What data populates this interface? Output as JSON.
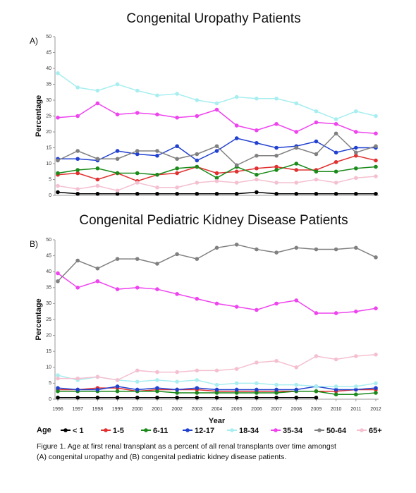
{
  "chart_data": [
    {
      "type": "line",
      "title": "Congenital Uropathy Patients",
      "panel_label": "A)",
      "ylabel": "Percentage",
      "x": [
        1996,
        1997,
        1998,
        1999,
        2000,
        2001,
        2002,
        2003,
        2004,
        2005,
        2006,
        2007,
        2008,
        2009,
        2010,
        2011,
        2012
      ],
      "xlim": [
        1996,
        2012
      ],
      "ylim": [
        0,
        50
      ],
      "yticks": [
        0,
        5,
        10,
        15,
        20,
        25,
        30,
        35,
        40,
        45,
        50
      ],
      "series": [
        {
          "name": "< 1",
          "color": "#000000",
          "values": [
            1,
            0.5,
            0.5,
            0.5,
            0.5,
            0.5,
            0.5,
            0.5,
            0.5,
            0.5,
            1,
            0.5,
            0.5,
            0.5,
            0.5,
            0.5,
            0.5
          ]
        },
        {
          "name": "1-5",
          "color": "#e03030",
          "values": [
            6.5,
            7,
            5,
            7,
            4.5,
            6.5,
            7,
            9,
            7,
            7.5,
            8.5,
            9,
            8,
            8,
            10.5,
            12.5,
            11
          ]
        },
        {
          "name": "6-11",
          "color": "#1a8a1a",
          "values": [
            7,
            8,
            8.5,
            7,
            7,
            6.5,
            8.5,
            9,
            5.5,
            9,
            6.5,
            8,
            10,
            7.5,
            7.5,
            8.5,
            9
          ]
        },
        {
          "name": "12-17",
          "color": "#2040d0",
          "values": [
            11.5,
            11.5,
            11,
            14,
            13,
            12.5,
            15.5,
            11,
            14,
            18,
            16.5,
            15,
            15.5,
            17,
            13.5,
            15,
            15
          ]
        },
        {
          "name": "18-34",
          "color": "#a8eef0",
          "values": [
            38.5,
            34,
            33,
            35,
            33,
            31.5,
            32,
            30,
            29,
            31,
            30.5,
            30.5,
            29,
            26.5,
            24,
            26.5,
            25
          ]
        },
        {
          "name": "35-34",
          "color": "#ee44ee",
          "values": [
            24.5,
            25,
            29,
            25.5,
            26,
            25.5,
            24.5,
            25,
            27,
            22,
            20.5,
            22.5,
            20,
            23,
            22.5,
            20,
            19.5
          ]
        },
        {
          "name": "50-64",
          "color": "#808080",
          "values": [
            11,
            14,
            11.5,
            11.5,
            14,
            14,
            11.5,
            13,
            15.5,
            9.5,
            12.5,
            12.5,
            15,
            13,
            19.5,
            13.5,
            15.5
          ]
        },
        {
          "name": "65+",
          "color": "#f4c0d0",
          "values": [
            3,
            2,
            3,
            1.5,
            4,
            2.5,
            2.5,
            4,
            4.5,
            4,
            5,
            4,
            4,
            5,
            4,
            5.5,
            6
          ]
        }
      ]
    },
    {
      "type": "line",
      "title": "Congenital Pediatric Kidney Disease Patients",
      "panel_label": "B)",
      "ylabel": "Percentage",
      "xlabel": "Year",
      "x": [
        1996,
        1997,
        1998,
        1999,
        2000,
        2001,
        2002,
        2003,
        2004,
        2005,
        2006,
        2007,
        2008,
        2009,
        2010,
        2011,
        2012
      ],
      "xlim": [
        1996,
        2012
      ],
      "xticks": [
        1996,
        1997,
        1998,
        1999,
        2000,
        2001,
        2002,
        2003,
        2004,
        2005,
        2006,
        2007,
        2008,
        2009,
        2010,
        2011,
        2012
      ],
      "ylim": [
        0,
        50
      ],
      "yticks": [
        0,
        5,
        10,
        15,
        20,
        25,
        30,
        35,
        40,
        45,
        50
      ],
      "series": [
        {
          "color": "#000000",
          "values": [
            0.5,
            0.5,
            0.5,
            0.5,
            0.5,
            0.5,
            0.5,
            0.5,
            0.5,
            0.5,
            0.5,
            0.5,
            0.5,
            0.5,
            null,
            null,
            null
          ]
        },
        {
          "color": "#e03030",
          "values": [
            3,
            3,
            3.5,
            3.5,
            2.5,
            3,
            3,
            3,
            2.5,
            2.5,
            2.5,
            2.5,
            2.5,
            2.5,
            2.5,
            3,
            3
          ]
        },
        {
          "color": "#1a8a1a",
          "values": [
            2.5,
            2.5,
            2.5,
            2.5,
            2.5,
            2.5,
            2,
            2,
            2,
            2,
            2,
            2,
            2.5,
            2.5,
            1.5,
            1.5,
            2
          ]
        },
        {
          "color": "#2040d0",
          "values": [
            3.5,
            3,
            3,
            4,
            3,
            3.5,
            3,
            3.5,
            3,
            3,
            3,
            3,
            3,
            4,
            3,
            3,
            3.5
          ]
        },
        {
          "color": "#a8eef0",
          "values": [
            7.5,
            6,
            7,
            6,
            5.5,
            6,
            5.5,
            6,
            4.5,
            5,
            5,
            4.5,
            4.5,
            4,
            4,
            4,
            5
          ]
        },
        {
          "color": "#ee44ee",
          "values": [
            39.5,
            35,
            37,
            34.5,
            35,
            34.5,
            33,
            31.5,
            30,
            29,
            28,
            30,
            31,
            27,
            27,
            27.5,
            28.5
          ]
        },
        {
          "color": "#808080",
          "values": [
            37,
            43.5,
            41,
            44,
            44,
            42.5,
            45.5,
            44,
            47.5,
            48.5,
            47,
            46,
            47.5,
            47,
            47,
            47.5,
            44.5
          ]
        },
        {
          "color": "#f4c0d0",
          "values": [
            6.5,
            6.5,
            7,
            6,
            9,
            8.5,
            8.5,
            9,
            9,
            9.5,
            11.5,
            12,
            10,
            13.5,
            12.5,
            13.5,
            14
          ]
        }
      ]
    }
  ],
  "legend": {
    "title": "Age"
  },
  "caption": [
    "Figure 1. Age at first renal transplant as a percent of all renal transplants over time amongst",
    "(A) congenital uropathy and (B) congenital pediatric kidney disease patients."
  ]
}
